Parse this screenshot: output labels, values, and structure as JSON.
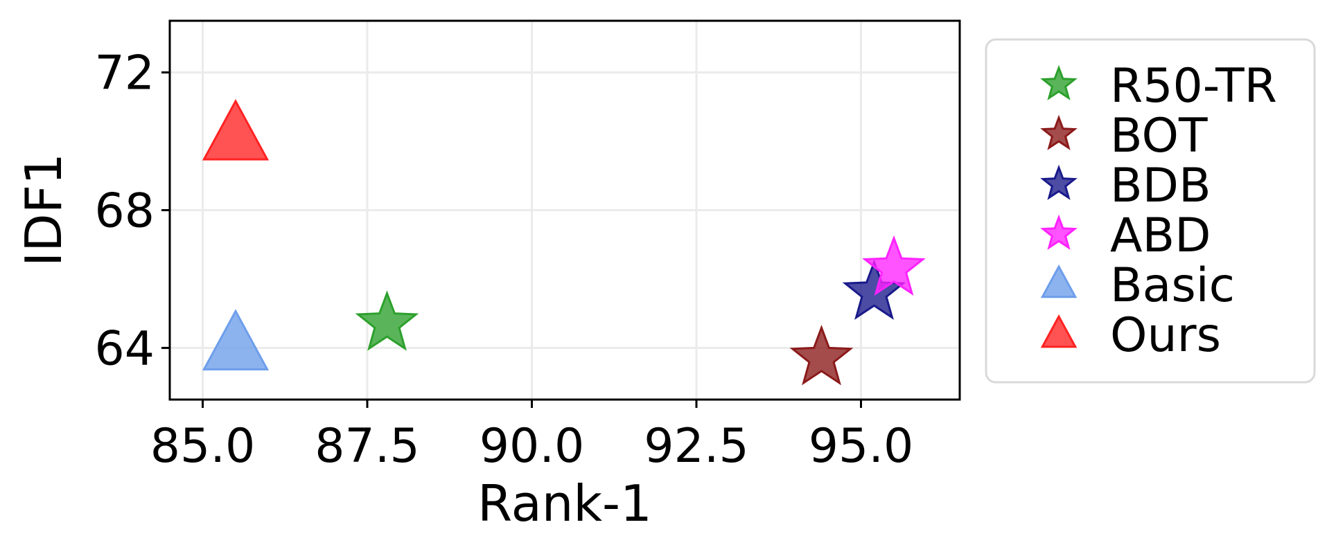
{
  "chart_data": {
    "type": "scatter",
    "xlabel": "Rank-1",
    "ylabel": "IDF1",
    "xlim": [
      84.5,
      96.5
    ],
    "ylim": [
      62.5,
      73.5
    ],
    "x_ticks": [
      85.0,
      87.5,
      90.0,
      92.5,
      95.0
    ],
    "x_tick_labels": [
      "85.0",
      "87.5",
      "90.0",
      "92.5",
      "95.0"
    ],
    "y_ticks": [
      64,
      68,
      72
    ],
    "y_tick_labels": [
      "64",
      "68",
      "72"
    ],
    "grid": true,
    "legend_position": "outside-right",
    "series": [
      {
        "name": "R50-TR",
        "marker": "star",
        "color": "#2ca02c",
        "x": 87.8,
        "y": 64.7
      },
      {
        "name": "BOT",
        "marker": "star",
        "color": "#8b1a1a",
        "x": 94.4,
        "y": 63.7
      },
      {
        "name": "BDB",
        "marker": "star",
        "color": "#1a1a8b",
        "x": 95.2,
        "y": 65.6
      },
      {
        "name": "ABD",
        "marker": "star",
        "color": "#ff22ff",
        "x": 95.5,
        "y": 66.3
      },
      {
        "name": "Basic",
        "marker": "triangle",
        "color": "#6d9eeb",
        "x": 85.5,
        "y": 64.1
      },
      {
        "name": "Ours",
        "marker": "triangle",
        "color": "#ff2222",
        "x": 85.5,
        "y": 70.2
      }
    ]
  }
}
